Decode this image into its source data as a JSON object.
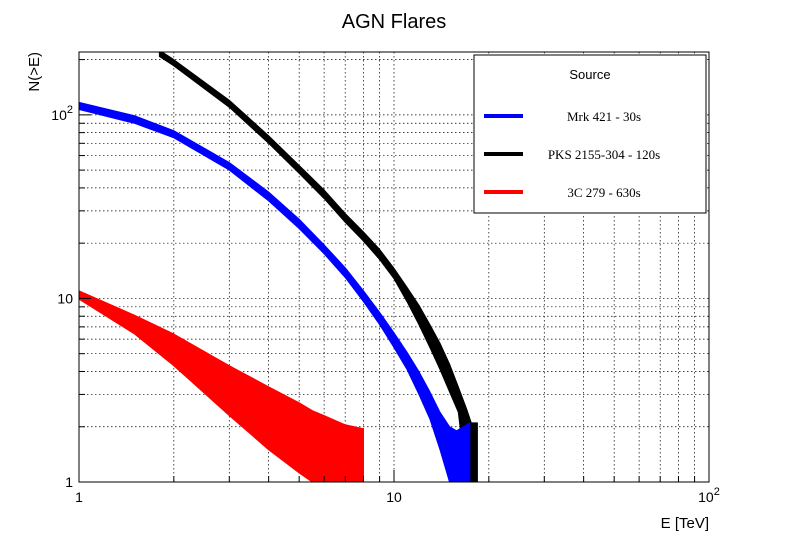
{
  "chart_data": {
    "type": "area",
    "title": "AGN Flares",
    "xlabel": "E [TeV]",
    "ylabel": "N(>E)",
    "xscale": "log",
    "yscale": "log",
    "xlim": [
      1,
      100
    ],
    "ylim": [
      1,
      220
    ],
    "grid": true,
    "x_ticks": [
      {
        "v": 1,
        "label": "1"
      },
      {
        "v": 10,
        "label": "10"
      },
      {
        "v": 100,
        "label": "10",
        "sup": "2"
      }
    ],
    "y_ticks": [
      {
        "v": 1,
        "label": "1"
      },
      {
        "v": 10,
        "label": "10"
      },
      {
        "v": 100,
        "label": "10",
        "sup": "2"
      }
    ],
    "legend": {
      "title": "Source",
      "position": "top-right",
      "entries": [
        {
          "label": "Mrk 421 - 30s",
          "color": "#0000ff"
        },
        {
          "label": "PKS 2155-304 - 120s",
          "color": "#000000"
        },
        {
          "label": "3C 279 - 630s",
          "color": "#ff0000"
        }
      ]
    },
    "series": [
      {
        "name": "PKS 2155-304 - 120s",
        "color": "#000000",
        "bands": [
          {
            "x": 1.8,
            "lower": 208,
            "upper": 225
          },
          {
            "x": 2,
            "lower": 185,
            "upper": 200
          },
          {
            "x": 3,
            "lower": 110,
            "upper": 120
          },
          {
            "x": 4,
            "lower": 70,
            "upper": 77
          },
          {
            "x": 5,
            "lower": 48,
            "upper": 53
          },
          {
            "x": 6,
            "lower": 35,
            "upper": 39
          },
          {
            "x": 7,
            "lower": 26,
            "upper": 29
          },
          {
            "x": 8,
            "lower": 20.5,
            "upper": 23
          },
          {
            "x": 9,
            "lower": 16.3,
            "upper": 18.5
          },
          {
            "x": 10,
            "lower": 12.8,
            "upper": 14.6
          },
          {
            "x": 11,
            "lower": 9.6,
            "upper": 11.5
          },
          {
            "x": 12,
            "lower": 7.2,
            "upper": 9.2
          },
          {
            "x": 13,
            "lower": 5.4,
            "upper": 7.2
          },
          {
            "x": 14,
            "lower": 4.1,
            "upper": 5.7
          },
          {
            "x": 15,
            "lower": 3.1,
            "upper": 4.4
          },
          {
            "x": 16,
            "lower": 2.4,
            "upper": 3.3
          },
          {
            "x": 17,
            "lower": 1.0,
            "upper": 2.5
          },
          {
            "x": 17.6,
            "lower": 1.0,
            "upper": 2.1
          },
          {
            "x": 18.4,
            "lower": 1.0,
            "upper": 2.1
          }
        ]
      },
      {
        "name": "Mrk 421 - 30s",
        "color": "#0000ff",
        "bands": [
          {
            "x": 1,
            "lower": 107,
            "upper": 117
          },
          {
            "x": 1.5,
            "lower": 90,
            "upper": 99
          },
          {
            "x": 2,
            "lower": 75,
            "upper": 82
          },
          {
            "x": 3,
            "lower": 50,
            "upper": 55
          },
          {
            "x": 4,
            "lower": 34,
            "upper": 38
          },
          {
            "x": 5,
            "lower": 24,
            "upper": 27
          },
          {
            "x": 6,
            "lower": 17.5,
            "upper": 19.6
          },
          {
            "x": 7,
            "lower": 13,
            "upper": 14.7
          },
          {
            "x": 8,
            "lower": 9.6,
            "upper": 11
          },
          {
            "x": 9,
            "lower": 7.2,
            "upper": 8.4
          },
          {
            "x": 10,
            "lower": 5.4,
            "upper": 6.5
          },
          {
            "x": 11,
            "lower": 4.1,
            "upper": 5.1
          },
          {
            "x": 12,
            "lower": 3.0,
            "upper": 4.0
          },
          {
            "x": 13,
            "lower": 2.2,
            "upper": 3.1
          },
          {
            "x": 14,
            "lower": 1.5,
            "upper": 2.4
          },
          {
            "x": 15,
            "lower": 1.0,
            "upper": 2.0
          },
          {
            "x": 15.8,
            "lower": 1.0,
            "upper": 1.9
          },
          {
            "x": 16.6,
            "lower": 1.0,
            "upper": 2.0
          },
          {
            "x": 17.4,
            "lower": 1.0,
            "upper": 2.1
          }
        ]
      },
      {
        "name": "3C 279 - 630s",
        "color": "#ff0000",
        "bands": [
          {
            "x": 1,
            "lower": 9.9,
            "upper": 11
          },
          {
            "x": 1.5,
            "lower": 6.4,
            "upper": 8.1
          },
          {
            "x": 2,
            "lower": 4.3,
            "upper": 6.4
          },
          {
            "x": 3,
            "lower": 2.3,
            "upper": 4.3
          },
          {
            "x": 4,
            "lower": 1.5,
            "upper": 3.3
          },
          {
            "x": 5,
            "lower": 1.12,
            "upper": 2.7
          },
          {
            "x": 5.5,
            "lower": 1.0,
            "upper": 2.45
          },
          {
            "x": 6,
            "lower": 1.0,
            "upper": 2.3
          },
          {
            "x": 7,
            "lower": 1.0,
            "upper": 2.05
          },
          {
            "x": 8,
            "lower": 1.0,
            "upper": 1.95
          }
        ]
      }
    ]
  }
}
